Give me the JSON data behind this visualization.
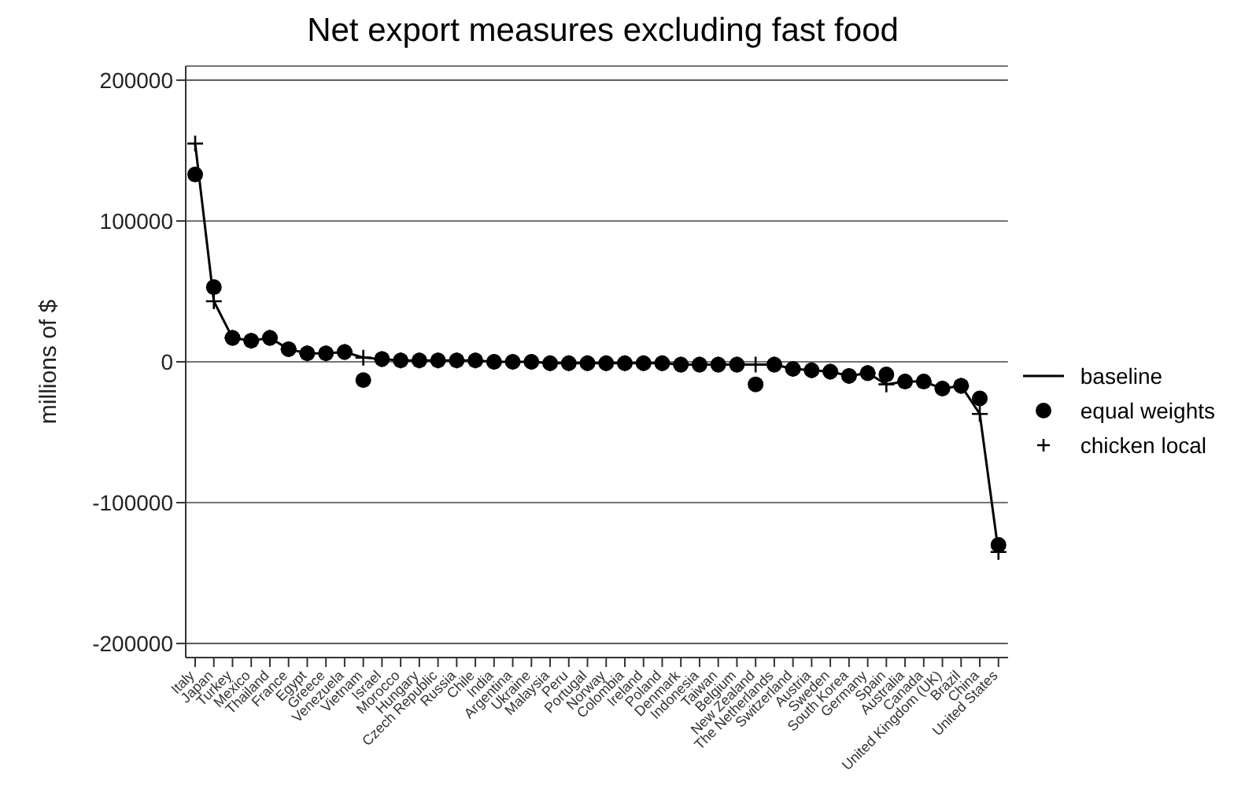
{
  "chart_data": {
    "type": "line",
    "title": "Net export measures excluding fast food",
    "ylabel": "millions of $",
    "categories": [
      "Italy",
      "Japan",
      "Turkey",
      "Mexico",
      "Thailand",
      "France",
      "Egypt",
      "Greece",
      "Venezuela",
      "Vietnam",
      "Israel",
      "Morocco",
      "Hungary",
      "Czech Republic",
      "Russia",
      "Chile",
      "India",
      "Argentina",
      "Ukraine",
      "Malaysia",
      "Peru",
      "Portugal",
      "Norway",
      "Colombia",
      "Ireland",
      "Poland",
      "Denmark",
      "Indonesia",
      "Taiwan",
      "Belgium",
      "New Zealand",
      "The Netherlands",
      "Switzerland",
      "Austria",
      "Sweden",
      "South Korea",
      "Germany",
      "Spain",
      "Australia",
      "Canada",
      "United Kingdom (UK)",
      "Brazil",
      "China",
      "United States"
    ],
    "series": [
      {
        "name": "baseline",
        "color": "#000000",
        "marker": "none",
        "values": [
          155000,
          43000,
          17000,
          15000,
          17000,
          9000,
          6000,
          6000,
          7000,
          3000,
          2000,
          1000,
          1000,
          1000,
          1000,
          1000,
          0,
          0,
          0,
          -1000,
          -1000,
          -1000,
          -1000,
          -1000,
          -1000,
          -1000,
          -2000,
          -2000,
          -2000,
          -2000,
          -2000,
          -2000,
          -5000,
          -6000,
          -7000,
          -10000,
          -8000,
          -16000,
          -14000,
          -14000,
          -19000,
          -17000,
          -37000,
          -135000
        ]
      },
      {
        "name": "equal weights",
        "type": "scatter",
        "color": "#000000",
        "marker": "circle",
        "values": [
          133000,
          53000,
          17000,
          15000,
          17000,
          9000,
          6000,
          6000,
          7000,
          -13000,
          2000,
          1000,
          1000,
          1000,
          1000,
          1000,
          0,
          0,
          0,
          -1000,
          -1000,
          -1000,
          -1000,
          -1000,
          -1000,
          -1000,
          -2000,
          -2000,
          -2000,
          -2000,
          -16000,
          -2000,
          -5000,
          -6000,
          -7000,
          -10000,
          -8000,
          -9000,
          -14000,
          -14000,
          -19000,
          -17000,
          -26000,
          -130000
        ]
      },
      {
        "name": "chicken local",
        "type": "scatter",
        "color": "#000000",
        "marker": "cross",
        "values": [
          155000,
          43000,
          17000,
          15000,
          17000,
          9000,
          6000,
          6000,
          7000,
          3000,
          2000,
          1000,
          1000,
          1000,
          1000,
          1000,
          0,
          0,
          0,
          -1000,
          -1000,
          -1000,
          -1000,
          -1000,
          -1000,
          -1000,
          -2000,
          -2000,
          -2000,
          -2000,
          -2000,
          -2000,
          -5000,
          -6000,
          -7000,
          -10000,
          -8000,
          -16000,
          -14000,
          -14000,
          -19000,
          -17000,
          -37000,
          -135000
        ]
      }
    ],
    "ylim": [
      -210000,
      210000
    ],
    "yticks": [
      -200000,
      -100000,
      0,
      100000,
      200000
    ],
    "grid": "y",
    "legend": "right"
  }
}
